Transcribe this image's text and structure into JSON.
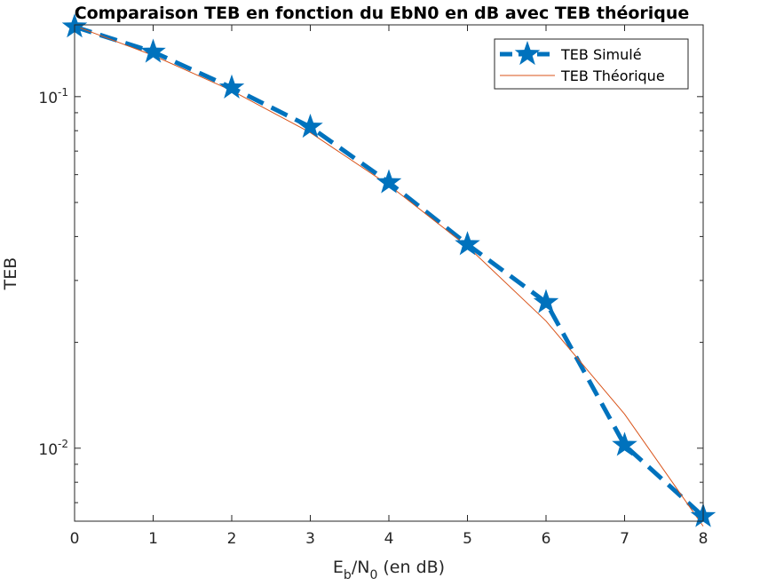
{
  "chart_data": {
    "type": "line",
    "title": "Comparaison TEB en fonction du EbN0 en dB avec TEB théorique",
    "xlabel_main": "E",
    "xlabel_sub1": "b",
    "xlabel_mid": "/N",
    "xlabel_sub2": "0",
    "xlabel_tail": " (en dB)",
    "ylabel": "TEB",
    "yscale": "log",
    "xlim": [
      0,
      8
    ],
    "ylim": [
      0.0062,
      0.16
    ],
    "x": [
      0,
      1,
      2,
      3,
      4,
      5,
      6,
      7,
      8
    ],
    "x_ticks": [
      "0",
      "1",
      "2",
      "3",
      "4",
      "5",
      "6",
      "7",
      "8"
    ],
    "y_ticks": [
      {
        "value": 0.1,
        "base": "10",
        "exp": "-1"
      },
      {
        "value": 0.01,
        "base": "10",
        "exp": "-2"
      }
    ],
    "grid": false,
    "legend_position": "top-right",
    "series": [
      {
        "name": "TEB Simulé",
        "values": [
          0.158,
          0.134,
          0.106,
          0.082,
          0.057,
          0.038,
          0.026,
          0.0102,
          0.0064
        ],
        "color": "#0072BD",
        "style": "dashed-star"
      },
      {
        "name": "TEB Théorique",
        "values": [
          0.159,
          0.131,
          0.104,
          0.079,
          0.056,
          0.0375,
          0.023,
          0.0125,
          0.006
        ],
        "color": "#D95319",
        "style": "solid"
      }
    ]
  }
}
